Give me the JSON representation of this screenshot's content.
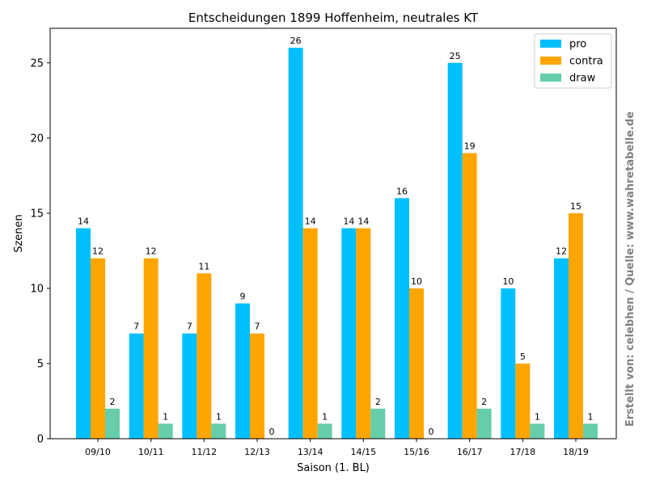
{
  "chart_data": {
    "type": "bar",
    "title": "Entscheidungen 1899 Hoffenheim, neutrales KT",
    "xlabel": "Saison (1. BL)",
    "ylabel": "Szenen",
    "categories": [
      "09/10",
      "10/11",
      "11/12",
      "12/13",
      "13/14",
      "14/15",
      "15/16",
      "16/17",
      "17/18",
      "18/19"
    ],
    "series": [
      {
        "name": "pro",
        "color": "#00bfff",
        "values": [
          14,
          7,
          7,
          9,
          26,
          14,
          16,
          25,
          10,
          12
        ]
      },
      {
        "name": "contra",
        "color": "#ffa500",
        "values": [
          12,
          12,
          11,
          7,
          14,
          14,
          10,
          19,
          5,
          15
        ]
      },
      {
        "name": "draw",
        "color": "#66cdaa",
        "values": [
          2,
          1,
          1,
          0,
          1,
          2,
          0,
          2,
          1,
          1
        ]
      }
    ],
    "ylim": [
      0,
      27.3
    ],
    "yticks": [
      0,
      5,
      10,
      15,
      20,
      25
    ],
    "grid": false,
    "legend_position": "top-right",
    "value_labels": true
  },
  "watermark": "Erstellt von: celebhen / Quelle: www.wahretabelle.de"
}
